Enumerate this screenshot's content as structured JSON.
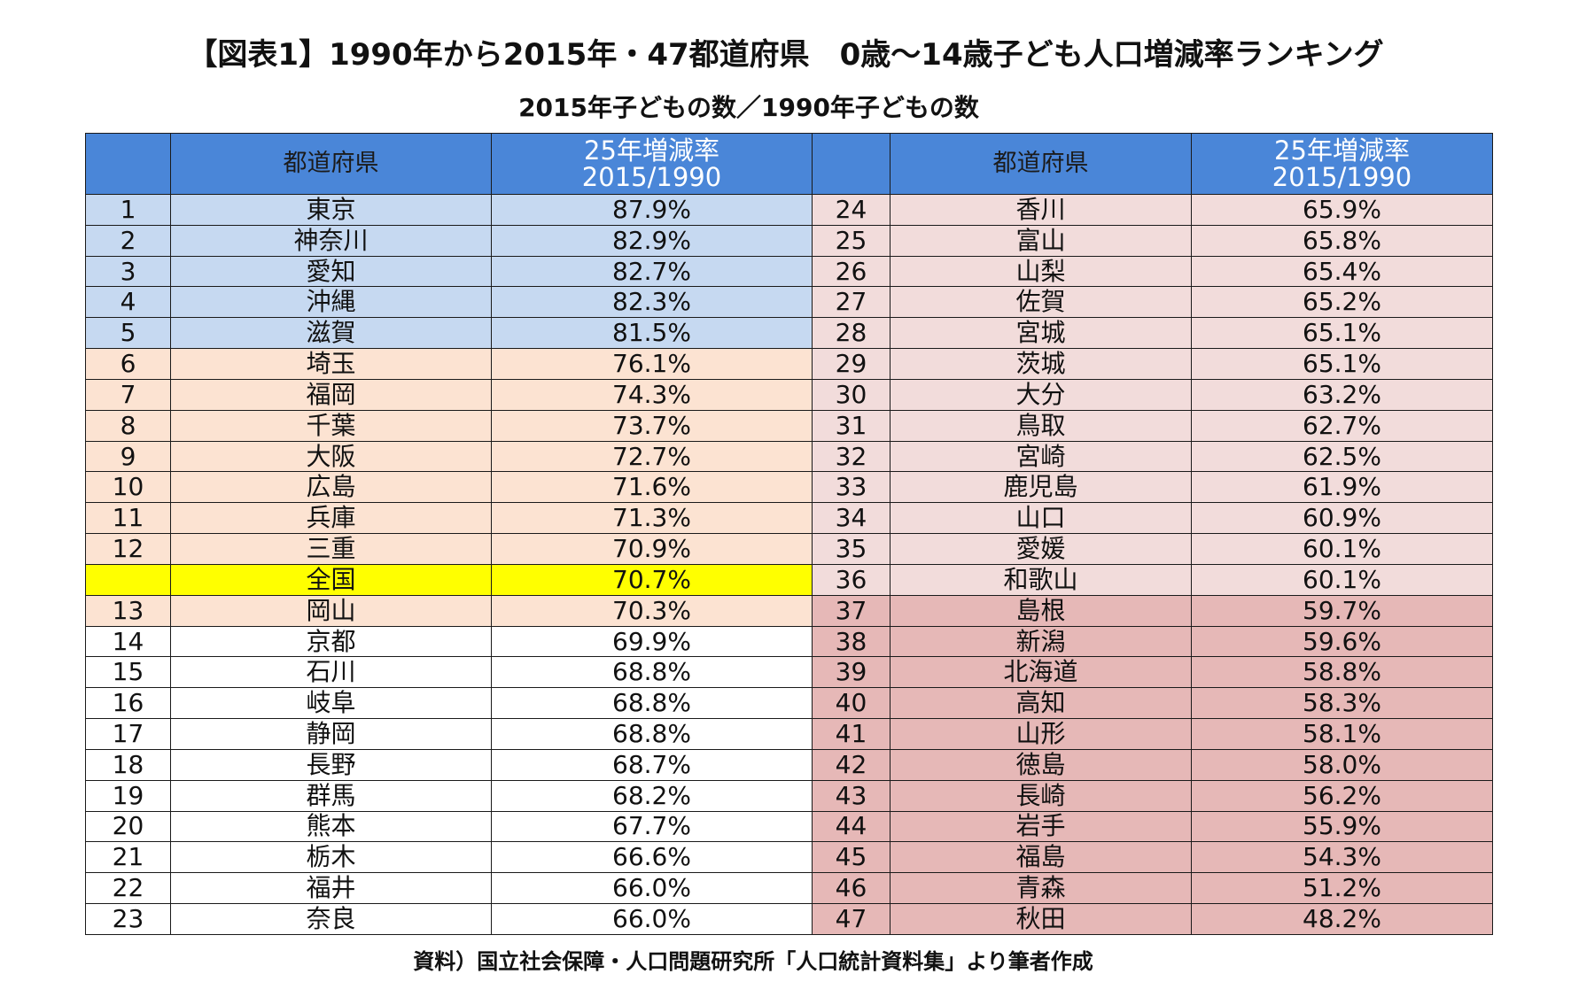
{
  "title": "【図表1】1990年から2015年・47都道府県　0歳～14歳子ども人口増減率ランキング",
  "subtitle": "2015年子どもの数／1990年子どもの数",
  "source": "資料）国立社会保障・人口問題研究所「人口統計資料集」より筆者作成",
  "headers": {
    "rank": "",
    "prefecture": "都道府県",
    "rate_line1": "25年増減率",
    "rate_line2": "2015/1990"
  },
  "tier_colors": {
    "header": "#4a86d8",
    "top": "#c6d9f1",
    "upper": "#fce3d2",
    "national": "#ffff00",
    "middle": "#ffffff",
    "lower": "#f2dcdb",
    "bottom": "#e6b8b7"
  },
  "left_rows": [
    {
      "rank": "1",
      "pref": "東京",
      "rate": "87.9%",
      "tier": "top"
    },
    {
      "rank": "2",
      "pref": "神奈川",
      "rate": "82.9%",
      "tier": "top"
    },
    {
      "rank": "3",
      "pref": "愛知",
      "rate": "82.7%",
      "tier": "top"
    },
    {
      "rank": "4",
      "pref": "沖縄",
      "rate": "82.3%",
      "tier": "top"
    },
    {
      "rank": "5",
      "pref": "滋賀",
      "rate": "81.5%",
      "tier": "top"
    },
    {
      "rank": "6",
      "pref": "埼玉",
      "rate": "76.1%",
      "tier": "upper"
    },
    {
      "rank": "7",
      "pref": "福岡",
      "rate": "74.3%",
      "tier": "upper"
    },
    {
      "rank": "8",
      "pref": "千葉",
      "rate": "73.7%",
      "tier": "upper"
    },
    {
      "rank": "9",
      "pref": "大阪",
      "rate": "72.7%",
      "tier": "upper"
    },
    {
      "rank": "10",
      "pref": "広島",
      "rate": "71.6%",
      "tier": "upper"
    },
    {
      "rank": "11",
      "pref": "兵庫",
      "rate": "71.3%",
      "tier": "upper"
    },
    {
      "rank": "12",
      "pref": "三重",
      "rate": "70.9%",
      "tier": "upper"
    },
    {
      "rank": "",
      "pref": "全国",
      "rate": "70.7%",
      "tier": "national"
    },
    {
      "rank": "13",
      "pref": "岡山",
      "rate": "70.3%",
      "tier": "upper"
    },
    {
      "rank": "14",
      "pref": "京都",
      "rate": "69.9%",
      "tier": "middle"
    },
    {
      "rank": "15",
      "pref": "石川",
      "rate": "68.8%",
      "tier": "middle"
    },
    {
      "rank": "16",
      "pref": "岐阜",
      "rate": "68.8%",
      "tier": "middle"
    },
    {
      "rank": "17",
      "pref": "静岡",
      "rate": "68.8%",
      "tier": "middle"
    },
    {
      "rank": "18",
      "pref": "長野",
      "rate": "68.7%",
      "tier": "middle"
    },
    {
      "rank": "19",
      "pref": "群馬",
      "rate": "68.2%",
      "tier": "middle"
    },
    {
      "rank": "20",
      "pref": "熊本",
      "rate": "67.7%",
      "tier": "middle"
    },
    {
      "rank": "21",
      "pref": "栃木",
      "rate": "66.6%",
      "tier": "middle"
    },
    {
      "rank": "22",
      "pref": "福井",
      "rate": "66.0%",
      "tier": "middle"
    },
    {
      "rank": "23",
      "pref": "奈良",
      "rate": "66.0%",
      "tier": "middle"
    }
  ],
  "right_rows": [
    {
      "rank": "24",
      "pref": "香川",
      "rate": "65.9%",
      "tier": "lower"
    },
    {
      "rank": "25",
      "pref": "富山",
      "rate": "65.8%",
      "tier": "lower"
    },
    {
      "rank": "26",
      "pref": "山梨",
      "rate": "65.4%",
      "tier": "lower"
    },
    {
      "rank": "27",
      "pref": "佐賀",
      "rate": "65.2%",
      "tier": "lower"
    },
    {
      "rank": "28",
      "pref": "宮城",
      "rate": "65.1%",
      "tier": "lower"
    },
    {
      "rank": "29",
      "pref": "茨城",
      "rate": "65.1%",
      "tier": "lower"
    },
    {
      "rank": "30",
      "pref": "大分",
      "rate": "63.2%",
      "tier": "lower"
    },
    {
      "rank": "31",
      "pref": "鳥取",
      "rate": "62.7%",
      "tier": "lower"
    },
    {
      "rank": "32",
      "pref": "宮崎",
      "rate": "62.5%",
      "tier": "lower"
    },
    {
      "rank": "33",
      "pref": "鹿児島",
      "rate": "61.9%",
      "tier": "lower"
    },
    {
      "rank": "34",
      "pref": "山口",
      "rate": "60.9%",
      "tier": "lower"
    },
    {
      "rank": "35",
      "pref": "愛媛",
      "rate": "60.1%",
      "tier": "lower"
    },
    {
      "rank": "36",
      "pref": "和歌山",
      "rate": "60.1%",
      "tier": "lower"
    },
    {
      "rank": "37",
      "pref": "島根",
      "rate": "59.7%",
      "tier": "bottom"
    },
    {
      "rank": "38",
      "pref": "新潟",
      "rate": "59.6%",
      "tier": "bottom"
    },
    {
      "rank": "39",
      "pref": "北海道",
      "rate": "58.8%",
      "tier": "bottom"
    },
    {
      "rank": "40",
      "pref": "高知",
      "rate": "58.3%",
      "tier": "bottom"
    },
    {
      "rank": "41",
      "pref": "山形",
      "rate": "58.1%",
      "tier": "bottom"
    },
    {
      "rank": "42",
      "pref": "徳島",
      "rate": "58.0%",
      "tier": "bottom"
    },
    {
      "rank": "43",
      "pref": "長崎",
      "rate": "56.2%",
      "tier": "bottom"
    },
    {
      "rank": "44",
      "pref": "岩手",
      "rate": "55.9%",
      "tier": "bottom"
    },
    {
      "rank": "45",
      "pref": "福島",
      "rate": "54.3%",
      "tier": "bottom"
    },
    {
      "rank": "46",
      "pref": "青森",
      "rate": "51.2%",
      "tier": "bottom"
    },
    {
      "rank": "47",
      "pref": "秋田",
      "rate": "48.2%",
      "tier": "bottom"
    }
  ]
}
